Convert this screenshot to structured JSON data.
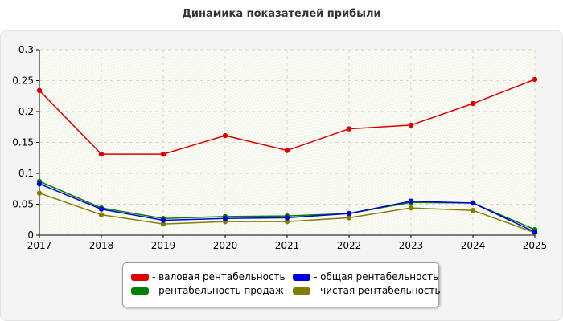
{
  "chart_data": {
    "type": "line",
    "title": "Динамика показателей прибыли",
    "categories": [
      "2017",
      "2018",
      "2019",
      "2020",
      "2021",
      "2022",
      "2023",
      "2024",
      "2025"
    ],
    "series": [
      {
        "name": "- валовая рентабельность",
        "color": "#e00000",
        "values": [
          0.234,
          0.131,
          0.131,
          0.161,
          0.137,
          0.172,
          0.178,
          0.213,
          0.252
        ]
      },
      {
        "name": "- рентабельность продаж",
        "color": "#008000",
        "values": [
          0.087,
          0.044,
          0.027,
          0.03,
          0.031,
          0.035,
          0.053,
          0.052,
          0.009
        ]
      },
      {
        "name": "- общая рентабельность",
        "color": "#0000e0",
        "values": [
          0.083,
          0.042,
          0.024,
          0.027,
          0.028,
          0.035,
          0.055,
          0.052,
          0.005
        ]
      },
      {
        "name": "- чистая рентабельность",
        "color": "#808000",
        "values": [
          0.068,
          0.033,
          0.018,
          0.022,
          0.022,
          0.028,
          0.044,
          0.04,
          0.004
        ]
      }
    ],
    "yticks": [
      "0",
      "0.05",
      "0.1",
      "0.15",
      "0.2",
      "0.25",
      "0.3"
    ],
    "ylim": [
      0,
      0.3
    ],
    "grid": true,
    "legend_position": "bottom"
  }
}
